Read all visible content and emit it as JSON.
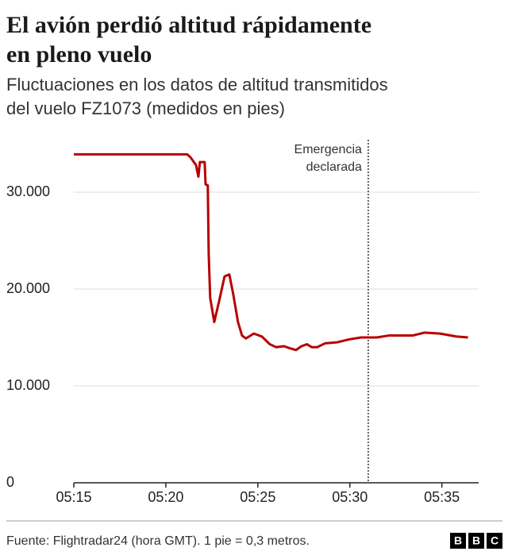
{
  "chart_data": {
    "type": "line",
    "title": [
      "El avión perdió altitud rápidamente",
      "en pleno vuelo"
    ],
    "subtitle": [
      "Fluctuaciones en los datos de altitud transmitidos",
      "del vuelo FZ1073 (medidos en pies)"
    ],
    "x": [
      315,
      321.16,
      321.34,
      321.64,
      321.77,
      321.85,
      322.11,
      322.16,
      322.28,
      322.33,
      322.41,
      322.63,
      322.89,
      323.19,
      323.45,
      323.66,
      323.92,
      324.14,
      324.35,
      324.78,
      325.22,
      325.65,
      325.99,
      326.42,
      326.72,
      327.07,
      327.37,
      327.67,
      327.93,
      328.23,
      328.66,
      329.31,
      329.96,
      330.6,
      331.47,
      332.11,
      333.41,
      334.05,
      334.91,
      335.78,
      336.42
    ],
    "values": [
      33900,
      33900,
      33600,
      32800,
      31600,
      33100,
      33100,
      30800,
      30700,
      23600,
      19100,
      16600,
      18700,
      21300,
      21500,
      19500,
      16600,
      15200,
      14900,
      15400,
      15100,
      14300,
      14000,
      14100,
      13900,
      13700,
      14100,
      14300,
      14000,
      14000,
      14400,
      14500,
      14800,
      15000,
      15000,
      15200,
      15200,
      15500,
      15400,
      15100,
      15000
    ],
    "color": "#b80000",
    "xlim": [
      315,
      337
    ],
    "xticks": [
      {
        "value": 315,
        "label": "05:15"
      },
      {
        "value": 320,
        "label": "05:20"
      },
      {
        "value": 325,
        "label": "05:25"
      },
      {
        "value": 330,
        "label": "05:30"
      },
      {
        "value": 335,
        "label": "05:35"
      }
    ],
    "ylim": [
      0,
      35000
    ],
    "yticks": [
      0,
      {
        "value": 10000,
        "label": "10.000"
      },
      {
        "value": 20000,
        "label": "20.000"
      },
      {
        "value": 30000,
        "label": "30.000"
      }
    ],
    "grid": true,
    "annotation": {
      "x": 331,
      "lines": [
        "Emergencia",
        "declarada"
      ]
    },
    "source": "Fuente: Flightradar24 (hora GMT). 1 pie = 0,3 metros.",
    "logo": [
      "B",
      "B",
      "C"
    ]
  }
}
